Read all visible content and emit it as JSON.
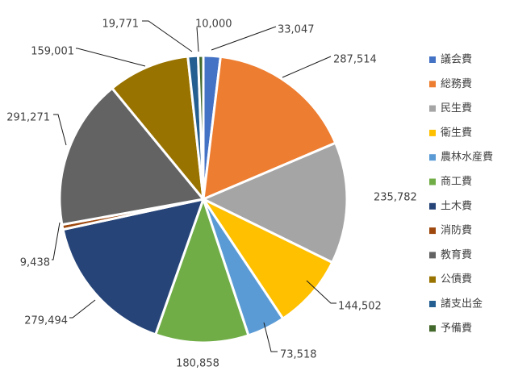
{
  "chart_data": {
    "type": "pie",
    "start_angle_deg": 0,
    "direction": "clockwise",
    "legend_position": "right",
    "slices": [
      {
        "label": "議会費",
        "value": 33047,
        "value_label": "33,047",
        "color": "#4472C4"
      },
      {
        "label": "総務費",
        "value": 287514,
        "value_label": "287,514",
        "color": "#ED7D31"
      },
      {
        "label": "民生費",
        "value": 235782,
        "value_label": "235,782",
        "color": "#A5A5A5"
      },
      {
        "label": "衛生費",
        "value": 144502,
        "value_label": "144,502",
        "color": "#FFC000"
      },
      {
        "label": "農林水産費",
        "value": 73518,
        "value_label": "73,518",
        "color": "#5B9BD5"
      },
      {
        "label": "商工費",
        "value": 180858,
        "value_label": "180,858",
        "color": "#70AD47"
      },
      {
        "label": "土木費",
        "value": 279494,
        "value_label": "279,494",
        "color": "#264478"
      },
      {
        "label": "消防費",
        "value": 9438,
        "value_label": "9,438",
        "color": "#9E480E"
      },
      {
        "label": "教育費",
        "value": 291271,
        "value_label": "291,271",
        "color": "#636363"
      },
      {
        "label": "公債費",
        "value": 159001,
        "value_label": "159,001",
        "color": "#997300"
      },
      {
        "label": "諸支出金",
        "value": 19771,
        "value_label": "19,771",
        "color": "#255E91"
      },
      {
        "label": "予備費",
        "value": 10000,
        "value_label": "10,000",
        "color": "#43682B"
      }
    ]
  }
}
